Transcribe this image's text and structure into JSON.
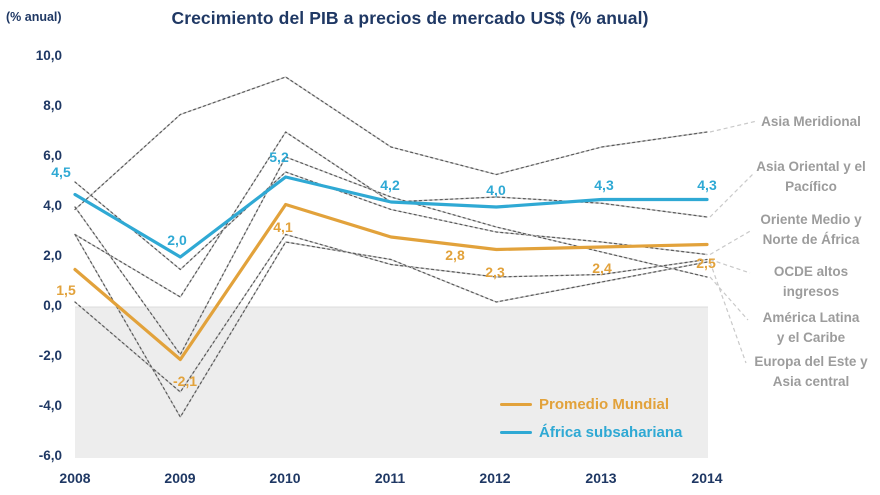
{
  "title": "Crecimiento del PIB a precios de mercado US$ (% anual)",
  "y_axis_unit": "(% anual)",
  "colors": {
    "orange": "#E2A23B",
    "blue": "#2FA9D4",
    "navy_text": "#1F3864",
    "gray_line_light": "#C9C9C9",
    "gray_line_dark": "#5A5A5A",
    "region_label_gray": "#9C9C9C",
    "negative_shading": "#EDEDED",
    "leader_line": "#C9C9C9"
  },
  "legend": {
    "items": [
      {
        "label": "Promedio Mundial",
        "color": "orange"
      },
      {
        "label": "África subsahariana",
        "color": "blue"
      }
    ]
  },
  "region_labels": [
    {
      "text": "Asia Meridional"
    },
    {
      "text": "Asia Oriental y el\nPacífico"
    },
    {
      "text": "Oriente Medio y\nNorte de África"
    },
    {
      "text": "OCDE altos\ningresos"
    },
    {
      "text": "América Latina\ny el Caribe"
    },
    {
      "text": "Europa del Este y\nAsia central"
    }
  ],
  "chart_data": {
    "type": "line",
    "x_labels": [
      "2008",
      "2009",
      "2010",
      "2011",
      "2012",
      "2013",
      "2014"
    ],
    "ytick_labels": [
      "10,0",
      "8,0",
      "6,0",
      "4,0",
      "2,0",
      "0,0",
      "-2,0",
      "-4,0",
      "-6,0"
    ],
    "ytick_values": [
      10,
      8,
      6,
      4,
      2,
      0,
      -2,
      -4,
      -6
    ],
    "ylim": [
      -6,
      10
    ],
    "grid": false,
    "legend_position": "bottom-right-inside",
    "series": [
      {
        "id": "promedio-mundial",
        "name": "Promedio Mundial",
        "color": "orange",
        "values": [
          1.5,
          -2.1,
          4.1,
          2.8,
          2.3,
          2.4,
          2.5
        ],
        "value_labels": [
          "1,5",
          "-2,1",
          "4,1",
          "2,8",
          "2,3",
          "2,4",
          "2,5"
        ]
      },
      {
        "id": "africa-subsahariana",
        "name": "África subsahariana",
        "color": "blue",
        "values": [
          4.5,
          2.0,
          5.2,
          4.2,
          4.0,
          4.3,
          4.3
        ],
        "value_labels": [
          "4,5",
          "2,0",
          "5,2",
          "4,2",
          "4,0",
          "4,3",
          "4,3"
        ]
      },
      {
        "id": "asia-meridional",
        "name": "Asia Meridional",
        "color": "gray",
        "values": [
          3.9,
          7.7,
          9.2,
          6.4,
          5.3,
          6.4,
          7.0
        ]
      },
      {
        "id": "asia-oriental-pacifico",
        "name": "Asia Oriental y el Pacífico",
        "color": "gray",
        "values": [
          2.9,
          0.4,
          7.0,
          4.2,
          4.4,
          4.15,
          3.6
        ]
      },
      {
        "id": "oriente-medio-norte-africa",
        "name": "Oriente Medio y Norte de África",
        "color": "gray",
        "values": [
          5.0,
          1.5,
          5.4,
          3.9,
          3.0,
          2.6,
          2.1
        ]
      },
      {
        "id": "ocde-altos-ingresos",
        "name": "OCDE altos ingresos",
        "color": "gray",
        "values": [
          0.2,
          -3.4,
          2.9,
          1.7,
          1.2,
          1.3,
          1.9
        ]
      },
      {
        "id": "america-latina-caribe",
        "name": "América Latina y el Caribe",
        "color": "gray",
        "values": [
          4.0,
          -1.9,
          6.0,
          4.4,
          3.2,
          2.2,
          1.2
        ]
      },
      {
        "id": "europa-este-asia-central",
        "name": "Europa del Este y Asia central",
        "color": "gray",
        "values": [
          2.9,
          -4.4,
          2.6,
          1.9,
          0.2,
          1.0,
          1.8
        ]
      }
    ]
  }
}
